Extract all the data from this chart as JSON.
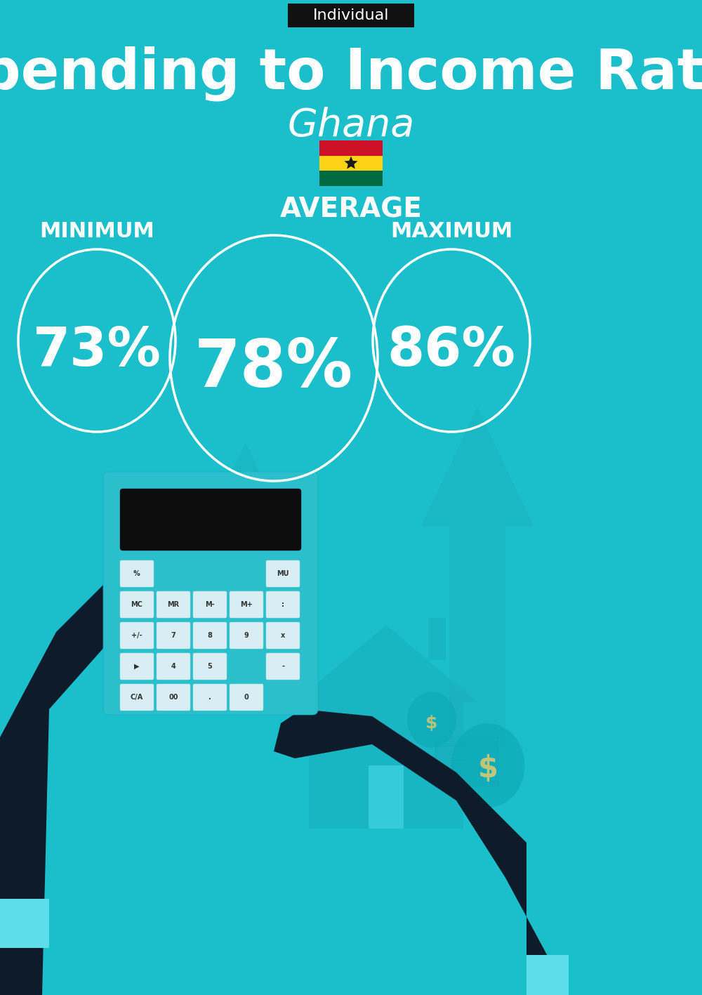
{
  "title": "Spending to Income Ratio",
  "country": "Ghana",
  "tag_label": "Individual",
  "bg_color": "#1BBFCC",
  "min_value": "73%",
  "avg_value": "78%",
  "max_value": "86%",
  "min_label": "MINIMUM",
  "avg_label": "AVERAGE",
  "max_label": "MAXIMUM",
  "title_color": "#FFFFFF",
  "country_color": "#FFFFFF",
  "label_color": "#FFFFFF",
  "value_color": "#FFFFFF",
  "circle_color": "#FFFFFF",
  "tag_bg": "#111111",
  "tag_text_color": "#FFFFFF",
  "flag_red": "#CE1126",
  "flag_gold": "#FCD116",
  "flag_green": "#006B3F",
  "dark_hand": "#0D1B2A",
  "cuff_color": "#5DDDEA",
  "calc_body": "#2BBFCC",
  "calc_screen": "#0D0D0D",
  "btn_face": "#D8EEF2",
  "btn_text": "#333333",
  "arrow_color": "#1AAEBB",
  "house_color": "#1AAEBB",
  "money_color": "#1AAEBB",
  "dollar_color": "#D4C870"
}
